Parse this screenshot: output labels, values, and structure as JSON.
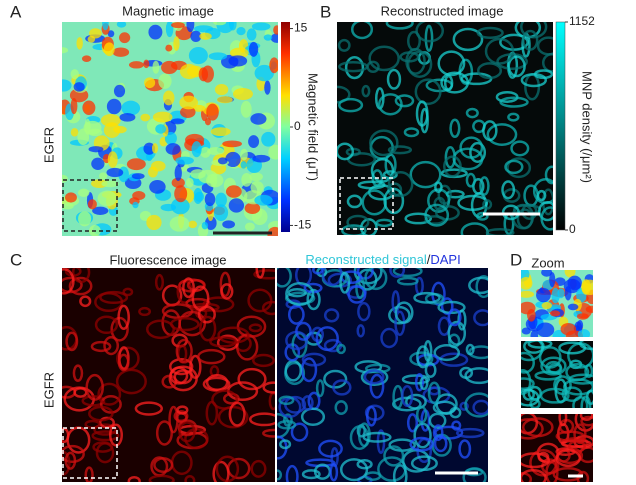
{
  "panels": [
    {
      "label": "A",
      "title": "Magnetic image",
      "row_label": "EGFR",
      "colorbar": {
        "label": "Magnetic field (μT)",
        "clim": [
          -16,
          16
        ],
        "ticks": [
          15,
          0,
          -15
        ]
      }
    },
    {
      "label": "B",
      "title": "Reconstructed image",
      "colorbar": {
        "label": "MNP density (/μm²)",
        "clim": [
          0,
          1152
        ],
        "ticks": [
          1152,
          0
        ]
      }
    },
    {
      "label": "C",
      "title": "Fluorescence image",
      "row_label": "EGFR",
      "title_right": [
        "Reconstructed signal",
        "/",
        "DAPI"
      ]
    },
    {
      "label": "D",
      "title": "Zoom"
    }
  ]
}
